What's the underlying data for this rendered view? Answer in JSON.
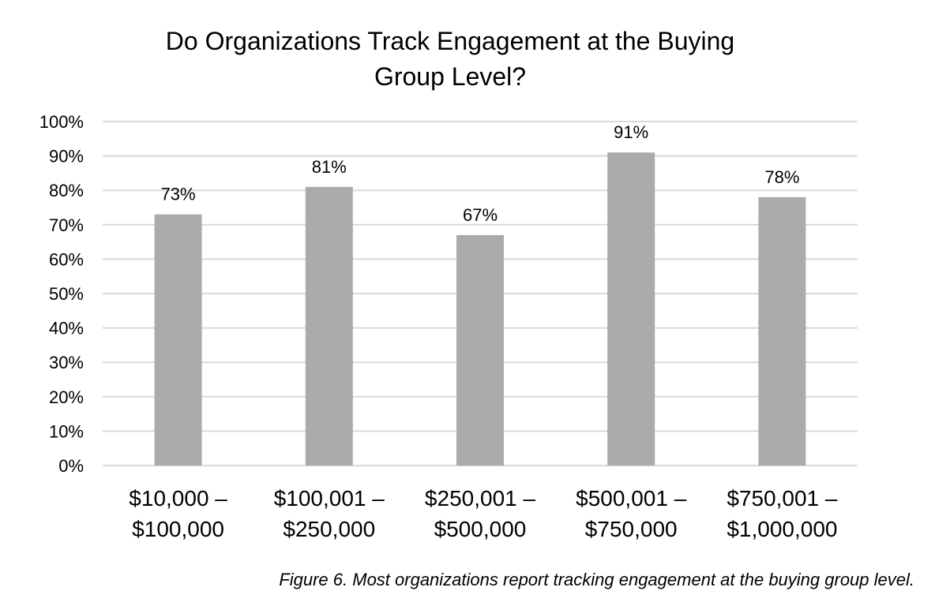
{
  "chart_data": {
    "type": "bar",
    "title": [
      "Do Organizations Track Engagement at the Buying",
      "Group Level?"
    ],
    "categories": [
      [
        "$10,000 –",
        "$100,000"
      ],
      [
        "$100,001 –",
        "$250,000"
      ],
      [
        "$250,001 –",
        "$500,000"
      ],
      [
        "$500,001 –",
        "$750,000"
      ],
      [
        "$750,001 –",
        "$1,000,000"
      ]
    ],
    "values": [
      73,
      81,
      67,
      91,
      78
    ],
    "data_labels": [
      "73%",
      "81%",
      "67%",
      "91%",
      "78%"
    ],
    "ylim": [
      0,
      100
    ],
    "yticks": [
      0,
      10,
      20,
      30,
      40,
      50,
      60,
      70,
      80,
      90,
      100
    ],
    "ytick_labels": [
      "0%",
      "10%",
      "20%",
      "30%",
      "40%",
      "50%",
      "60%",
      "70%",
      "80%",
      "90%",
      "100%"
    ],
    "xlabel": "",
    "ylabel": "",
    "grid": true,
    "legend": "none",
    "bar_color": "#ababab",
    "grid_color": "#d9d9d9"
  },
  "caption": "Figure 6. Most organizations report tracking engagement at the buying group level."
}
